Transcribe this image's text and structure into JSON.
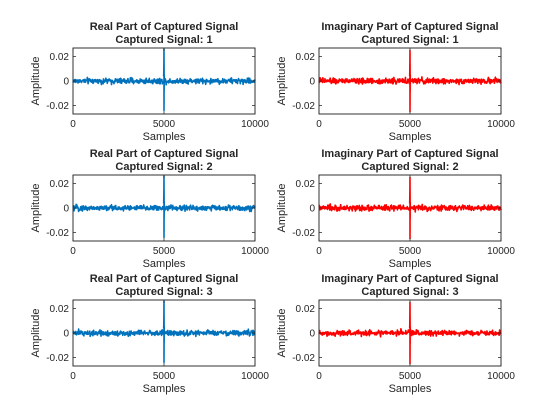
{
  "chart_data": [
    {
      "type": "line",
      "title": "Real Part of Captured Signal",
      "subtitle": "Captured Signal: 1",
      "xlabel": "Samples",
      "ylabel": "Amplitude",
      "xlim": [
        0,
        10000
      ],
      "ylim": [
        -0.027,
        0.027
      ],
      "xticks": [
        "0",
        "5000",
        "10000"
      ],
      "yticks": [
        "0.02",
        "0",
        "-0.02"
      ],
      "color": "#0072BD",
      "series": [
        {
          "x_range": [
            1,
            10000
          ],
          "noise_amplitude": 0.0025,
          "spike_center": 5000,
          "spike_peak_max": 0.026,
          "spike_peak_min": -0.024
        }
      ]
    },
    {
      "type": "line",
      "title": "Imaginary Part of Captured Signal",
      "subtitle": "Captured Signal: 1",
      "xlabel": "Samples",
      "ylabel": "Amplitude",
      "xlim": [
        0,
        10000
      ],
      "ylim": [
        -0.027,
        0.027
      ],
      "xticks": [
        "0",
        "5000",
        "10000"
      ],
      "yticks": [
        "0.02",
        "0",
        "-0.02"
      ],
      "color": "#FF0000",
      "series": [
        {
          "x_range": [
            1,
            10000
          ],
          "noise_amplitude": 0.0025,
          "spike_center": 5000,
          "spike_peak_max": 0.025,
          "spike_peak_min": -0.025
        }
      ]
    },
    {
      "type": "line",
      "title": "Real Part of Captured Signal",
      "subtitle": "Captured Signal: 2",
      "xlabel": "Samples",
      "ylabel": "Amplitude",
      "xlim": [
        0,
        10000
      ],
      "ylim": [
        -0.027,
        0.027
      ],
      "xticks": [
        "0",
        "5000",
        "10000"
      ],
      "yticks": [
        "0.02",
        "0",
        "-0.02"
      ],
      "color": "#0072BD",
      "series": [
        {
          "x_range": [
            1,
            10000
          ],
          "noise_amplitude": 0.0025,
          "spike_center": 5000,
          "spike_peak_max": 0.026,
          "spike_peak_min": -0.024
        }
      ]
    },
    {
      "type": "line",
      "title": "Imaginary Part of Captured Signal",
      "subtitle": "Captured Signal: 2",
      "xlabel": "Samples",
      "ylabel": "Amplitude",
      "xlim": [
        0,
        10000
      ],
      "ylim": [
        -0.027,
        0.027
      ],
      "xticks": [
        "0",
        "5000",
        "10000"
      ],
      "yticks": [
        "0.02",
        "0",
        "-0.02"
      ],
      "color": "#FF0000",
      "series": [
        {
          "x_range": [
            1,
            10000
          ],
          "noise_amplitude": 0.0025,
          "spike_center": 5000,
          "spike_peak_max": 0.025,
          "spike_peak_min": -0.025
        }
      ]
    },
    {
      "type": "line",
      "title": "Real Part of Captured Signal",
      "subtitle": "Captured Signal: 3",
      "xlabel": "Samples",
      "ylabel": "Amplitude",
      "xlim": [
        0,
        10000
      ],
      "ylim": [
        -0.027,
        0.027
      ],
      "xticks": [
        "0",
        "5000",
        "10000"
      ],
      "yticks": [
        "0.02",
        "0",
        "-0.02"
      ],
      "color": "#0072BD",
      "series": [
        {
          "x_range": [
            1,
            10000
          ],
          "noise_amplitude": 0.0025,
          "spike_center": 5000,
          "spike_peak_max": 0.026,
          "spike_peak_min": -0.024
        }
      ]
    },
    {
      "type": "line",
      "title": "Imaginary Part of Captured Signal",
      "subtitle": "Captured Signal: 3",
      "xlabel": "Samples",
      "ylabel": "Amplitude",
      "xlim": [
        0,
        10000
      ],
      "ylim": [
        -0.027,
        0.027
      ],
      "xticks": [
        "0",
        "5000",
        "10000"
      ],
      "yticks": [
        "0.02",
        "0",
        "-0.02"
      ],
      "color": "#FF0000",
      "series": [
        {
          "x_range": [
            1,
            10000
          ],
          "noise_amplitude": 0.0025,
          "spike_center": 5000,
          "spike_peak_max": 0.025,
          "spike_peak_min": -0.025
        }
      ]
    }
  ]
}
